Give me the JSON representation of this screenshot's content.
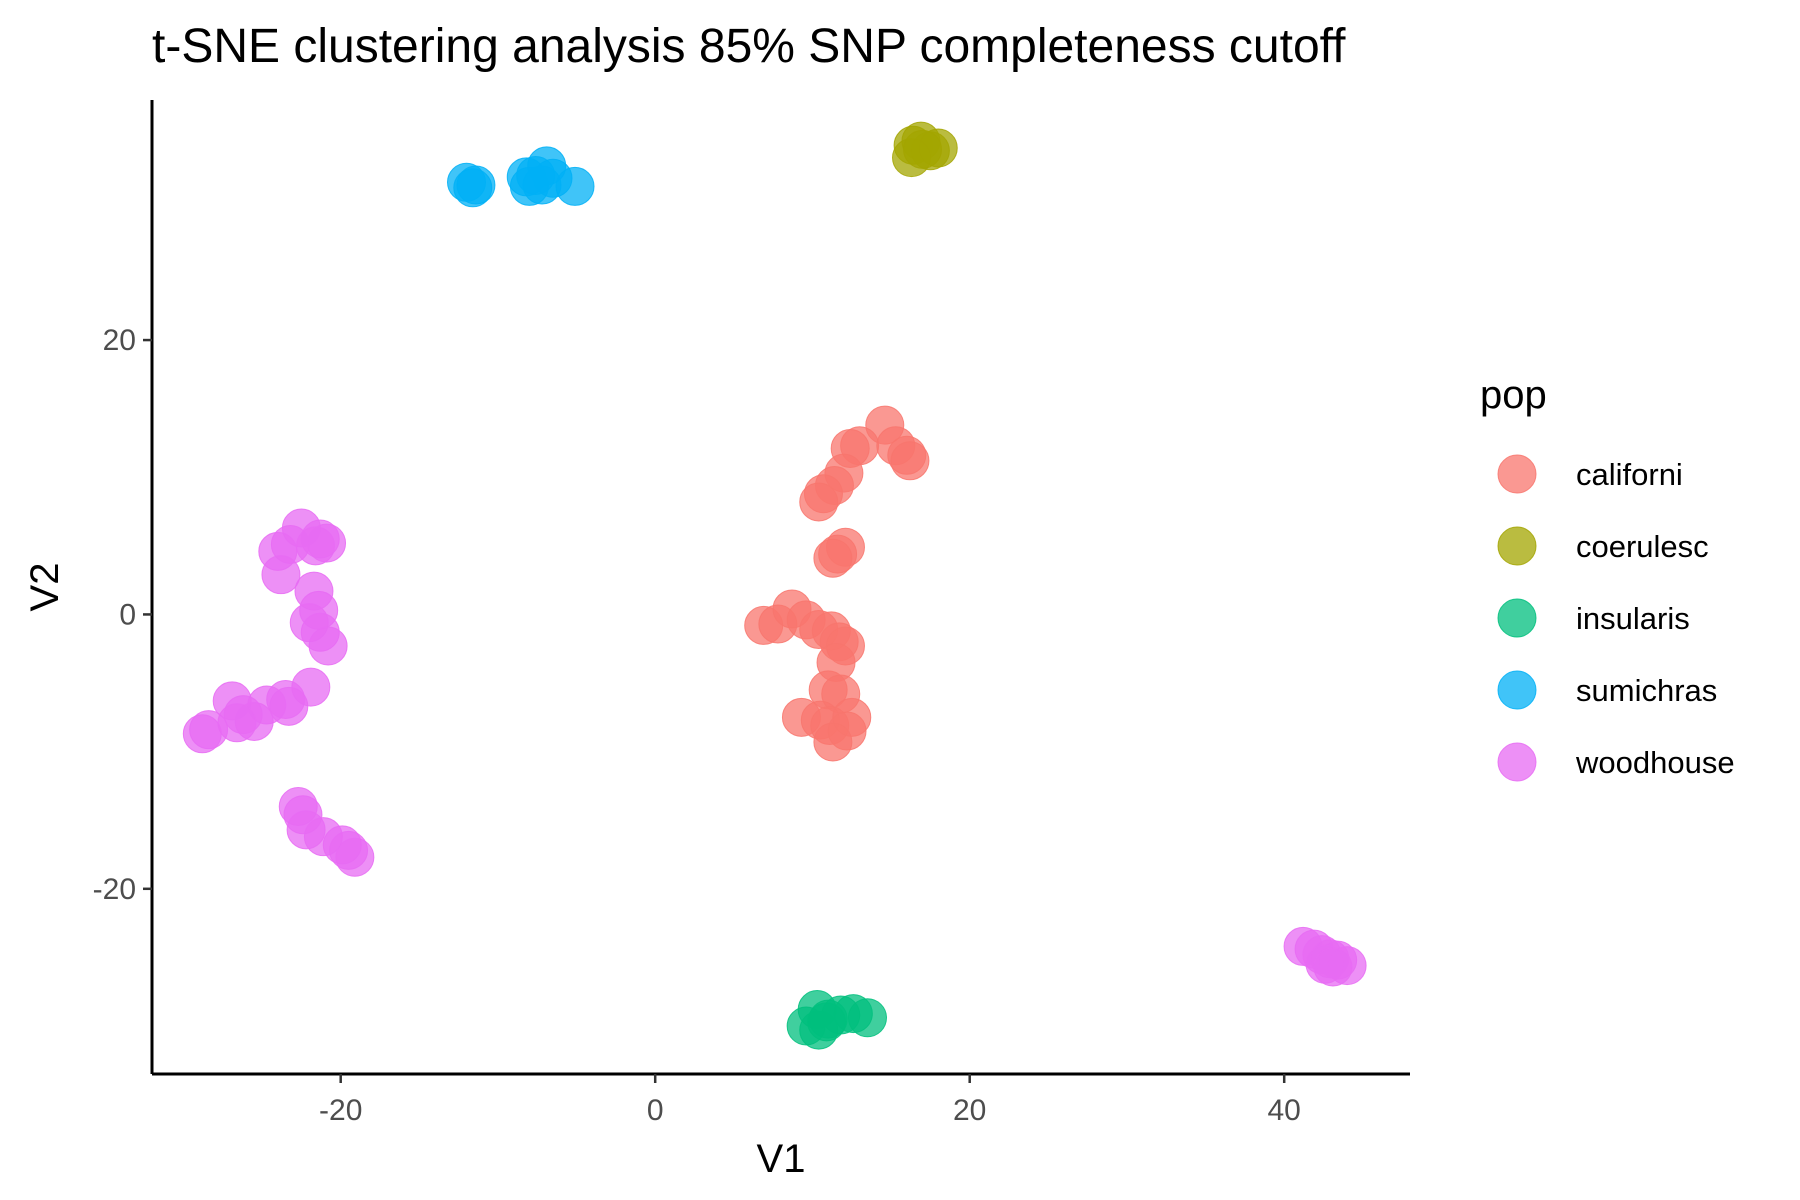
{
  "chart_data": {
    "type": "scatter",
    "title": "t-SNE clustering analysis 85% SNP completeness cutoff",
    "xlabel": "V1",
    "ylabel": "V2",
    "xlim": [
      -32,
      48
    ],
    "ylim": [
      -33.5,
      37.5
    ],
    "x_ticks": [
      {
        "value": -20,
        "label": "-20"
      },
      {
        "value": 0,
        "label": "0"
      },
      {
        "value": 20,
        "label": "20"
      },
      {
        "value": 40,
        "label": "40"
      }
    ],
    "y_ticks": [
      {
        "value": -20,
        "label": "-20"
      },
      {
        "value": 0,
        "label": "0"
      },
      {
        "value": 20,
        "label": "20"
      }
    ],
    "grid": false,
    "legend": {
      "title": "pop",
      "placement": "right"
    },
    "series": [
      {
        "name": "californi",
        "color": "#F8766D",
        "points": [
          [
            14.6,
            13.8
          ],
          [
            13.0,
            12.3
          ],
          [
            12.4,
            12.1
          ],
          [
            15.3,
            12.3
          ],
          [
            16.0,
            11.6
          ],
          [
            16.2,
            11.2
          ],
          [
            12.0,
            10.3
          ],
          [
            11.4,
            9.4
          ],
          [
            10.7,
            8.8
          ],
          [
            10.4,
            8.2
          ],
          [
            12.1,
            4.9
          ],
          [
            11.6,
            4.4
          ],
          [
            11.3,
            4.1
          ],
          [
            6.9,
            -0.8
          ],
          [
            7.8,
            -0.7
          ],
          [
            8.7,
            0.4
          ],
          [
            9.6,
            -0.4
          ],
          [
            10.4,
            -1.1
          ],
          [
            11.2,
            -1.2
          ],
          [
            11.7,
            -2.0
          ],
          [
            12.1,
            -2.3
          ],
          [
            11.5,
            -3.5
          ],
          [
            11.0,
            -5.5
          ],
          [
            11.8,
            -5.8
          ],
          [
            9.3,
            -7.5
          ],
          [
            10.5,
            -7.7
          ],
          [
            11.1,
            -8.1
          ],
          [
            12.5,
            -7.5
          ],
          [
            12.2,
            -8.5
          ],
          [
            11.3,
            -9.3
          ]
        ]
      },
      {
        "name": "coerulesc",
        "color": "#A3A500",
        "points": [
          [
            16.4,
            34.2
          ],
          [
            16.9,
            34.5
          ],
          [
            17.5,
            33.8
          ],
          [
            18.0,
            34.0
          ],
          [
            16.3,
            33.3
          ],
          [
            17.0,
            33.9
          ]
        ]
      },
      {
        "name": "insularis",
        "color": "#00BF7D",
        "points": [
          [
            10.3,
            -28.8
          ],
          [
            11.0,
            -29.5
          ],
          [
            11.8,
            -29.2
          ],
          [
            12.6,
            -29.1
          ],
          [
            13.5,
            -29.4
          ],
          [
            9.6,
            -30.0
          ],
          [
            10.4,
            -30.3
          ],
          [
            10.9,
            -29.7
          ]
        ]
      },
      {
        "name": "sumichras",
        "color": "#00B0F6",
        "points": [
          [
            -12.0,
            31.5
          ],
          [
            -11.4,
            31.3
          ],
          [
            -11.6,
            31.1
          ],
          [
            -8.2,
            31.9
          ],
          [
            -7.6,
            32.0
          ],
          [
            -7.2,
            31.3
          ],
          [
            -6.9,
            32.7
          ],
          [
            -6.5,
            31.8
          ],
          [
            -5.1,
            31.2
          ],
          [
            -8.0,
            31.2
          ]
        ]
      },
      {
        "name": "woodhouse",
        "color": "#E76BF3",
        "points": [
          [
            -22.5,
            6.3
          ],
          [
            -23.2,
            5.1
          ],
          [
            -24.0,
            4.6
          ],
          [
            -21.3,
            5.5
          ],
          [
            -20.9,
            5.2
          ],
          [
            -21.6,
            5.0
          ],
          [
            -23.8,
            2.9
          ],
          [
            -21.7,
            1.7
          ],
          [
            -21.4,
            0.3
          ],
          [
            -22.0,
            -0.6
          ],
          [
            -21.3,
            -1.3
          ],
          [
            -20.8,
            -2.3
          ],
          [
            -21.9,
            -5.3
          ],
          [
            -23.3,
            -6.7
          ],
          [
            -23.5,
            -6.2
          ],
          [
            -24.7,
            -6.6
          ],
          [
            -26.9,
            -6.3
          ],
          [
            -26.2,
            -7.3
          ],
          [
            -25.5,
            -7.8
          ],
          [
            -26.6,
            -7.9
          ],
          [
            -28.4,
            -8.4
          ],
          [
            -28.8,
            -8.7
          ],
          [
            -22.7,
            -14.0
          ],
          [
            -22.4,
            -14.6
          ],
          [
            -22.2,
            -15.7
          ],
          [
            -21.1,
            -16.2
          ],
          [
            -19.9,
            -16.8
          ],
          [
            -19.5,
            -17.2
          ],
          [
            -19.1,
            -17.7
          ],
          [
            41.2,
            -24.2
          ],
          [
            41.9,
            -24.4
          ],
          [
            42.4,
            -24.8
          ],
          [
            42.9,
            -25.1
          ],
          [
            43.4,
            -25.2
          ],
          [
            44.0,
            -25.6
          ],
          [
            42.6,
            -25.5
          ],
          [
            43.1,
            -25.7
          ]
        ]
      }
    ]
  }
}
